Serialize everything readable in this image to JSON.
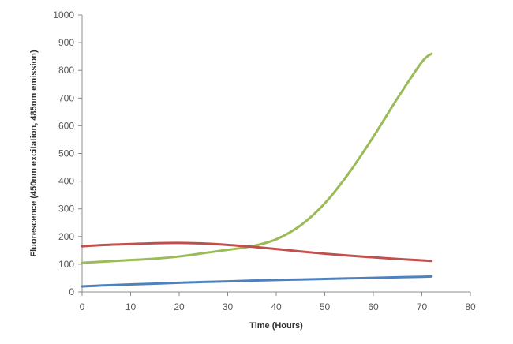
{
  "chart_data": {
    "type": "line",
    "title": "",
    "xlabel": "Time (Hours)",
    "ylabel": "Fluorescence (450nm excitation, 485nm emission)",
    "xlim": [
      0,
      80
    ],
    "ylim": [
      0,
      1000
    ],
    "xticks": [
      "0",
      "10",
      "20",
      "30",
      "40",
      "50",
      "60",
      "70",
      "80"
    ],
    "yticks": [
      "0",
      "100",
      "200",
      "300",
      "400",
      "500",
      "600",
      "700",
      "800",
      "900",
      "1000"
    ],
    "grid": false,
    "legend": false,
    "x": [
      0,
      5,
      10,
      15,
      20,
      25,
      30,
      35,
      40,
      45,
      50,
      55,
      60,
      65,
      70,
      72
    ],
    "series": [
      {
        "color": "#9bbb59",
        "values": [
          105,
          110,
          115,
          120,
          128,
          140,
          152,
          165,
          190,
          240,
          320,
          430,
          560,
          700,
          830,
          860
        ]
      },
      {
        "color": "#c0504d",
        "values": [
          165,
          170,
          173,
          176,
          177,
          175,
          170,
          163,
          155,
          146,
          138,
          131,
          125,
          119,
          114,
          112
        ]
      },
      {
        "color": "#4f81bd",
        "values": [
          20,
          24,
          27,
          30,
          33,
          36,
          38,
          41,
          43,
          45,
          47,
          49,
          51,
          53,
          55,
          56
        ]
      }
    ]
  }
}
